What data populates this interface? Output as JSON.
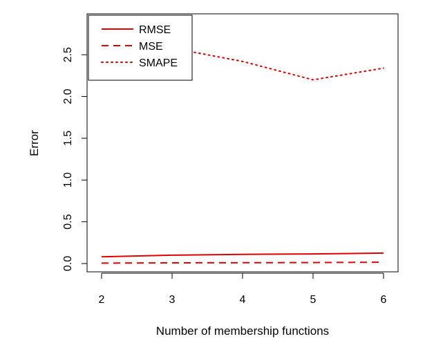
{
  "chart_data": {
    "type": "line",
    "x": [
      2,
      3,
      4,
      5,
      6
    ],
    "xlabel": "Number of membership functions",
    "ylabel": "Error",
    "xticks": [
      "2",
      "3",
      "4",
      "5",
      "6"
    ],
    "yticks": [
      "0.0",
      "0.5",
      "1.0",
      "1.5",
      "2.0",
      "2.5"
    ],
    "xlim": [
      2,
      6
    ],
    "ylim": [
      0,
      2.85
    ],
    "grid": false,
    "legend_position": "top-left",
    "series": [
      {
        "name": "RMSE",
        "values": [
          0.08,
          0.1,
          0.11,
          0.115,
          0.125
        ],
        "color": "#e00000",
        "style": "solid"
      },
      {
        "name": "MSE",
        "values": [
          0.005,
          0.008,
          0.01,
          0.012,
          0.016
        ],
        "color": "#e00000",
        "style": "dashed"
      },
      {
        "name": "SMAPE",
        "values": [
          2.86,
          2.58,
          2.42,
          2.2,
          2.34
        ],
        "color": "#e00000",
        "style": "dotted"
      }
    ]
  }
}
